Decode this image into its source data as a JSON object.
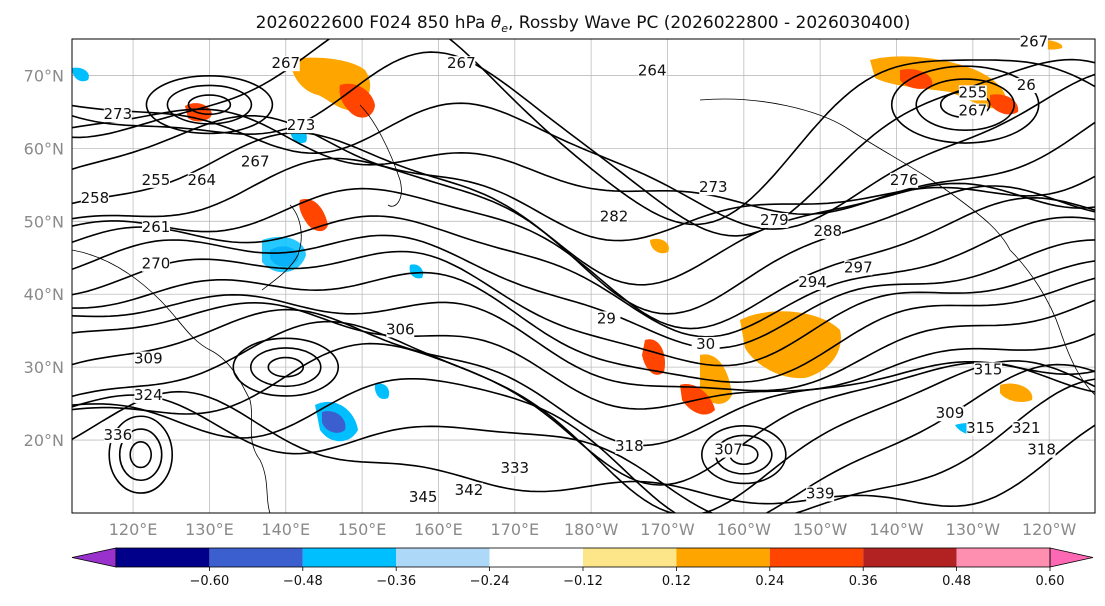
{
  "chart_data": {
    "type": "contour-map",
    "title": "2026022600 F024 850 hPa θe, Rossby Wave PC (2026022800 - 2026030400)",
    "title_parts": {
      "prefix": "2026022600 F024 850 hPa ",
      "symbol": "θ",
      "subscript": "e",
      "suffix": ", Rossby Wave PC (2026022800 - 2026030400)"
    },
    "lat_ticks": [
      "20°N",
      "30°N",
      "40°N",
      "50°N",
      "60°N",
      "70°N"
    ],
    "lat_values": [
      20,
      30,
      40,
      50,
      60,
      70
    ],
    "lon_ticks": [
      "120°E",
      "130°E",
      "140°E",
      "150°E",
      "160°E",
      "170°E",
      "180°W",
      "170°W",
      "160°W",
      "150°W",
      "140°W",
      "130°W",
      "120°W"
    ],
    "lon_values": [
      120,
      130,
      140,
      150,
      160,
      170,
      180,
      190,
      200,
      210,
      220,
      230,
      240
    ],
    "extent": {
      "lon_min": 112,
      "lon_max": 246,
      "lat_min": 10,
      "lat_max": 75
    },
    "colorbar": {
      "ticks": [
        "−0.60",
        "−0.48",
        "−0.36",
        "−0.24",
        "−0.12",
        "0.12",
        "0.24",
        "0.36",
        "0.48",
        "0.60"
      ],
      "tick_values": [
        -0.6,
        -0.48,
        -0.36,
        -0.24,
        -0.12,
        0.12,
        0.24,
        0.36,
        0.48,
        0.6
      ],
      "colors": [
        "#9932cc",
        "#00008b",
        "#3b5fce",
        "#00bfff",
        "#add8f7",
        "#ffffff",
        "#fde68a",
        "#ffa500",
        "#ff4500",
        "#b22222",
        "#ff8fb0",
        "#ff69b4"
      ],
      "extend": "both"
    },
    "contour_labels": [
      {
        "text": "267",
        "lon": 140,
        "lat": 71.0
      },
      {
        "text": "267",
        "lon": 163,
        "lat": 71.0
      },
      {
        "text": "264",
        "lon": 188,
        "lat": 70.0
      },
      {
        "text": "267",
        "lon": 238,
        "lat": 74.0
      },
      {
        "text": "26",
        "lon": 237,
        "lat": 68.0
      },
      {
        "text": "255",
        "lon": 230,
        "lat": 67.0
      },
      {
        "text": "267",
        "lon": 230,
        "lat": 64.5
      },
      {
        "text": "273",
        "lon": 118,
        "lat": 64.0
      },
      {
        "text": "273",
        "lon": 142,
        "lat": 62.5
      },
      {
        "text": "255",
        "lon": 123,
        "lat": 55.0
      },
      {
        "text": "264",
        "lon": 129,
        "lat": 55.0
      },
      {
        "text": "267",
        "lon": 136,
        "lat": 57.5
      },
      {
        "text": "258",
        "lon": 115,
        "lat": 52.5
      },
      {
        "text": "261",
        "lon": 123,
        "lat": 48.5
      },
      {
        "text": "270",
        "lon": 123,
        "lat": 43.5
      },
      {
        "text": "273",
        "lon": 196,
        "lat": 54.0
      },
      {
        "text": "282",
        "lon": 183,
        "lat": 50.0
      },
      {
        "text": "279",
        "lon": 204,
        "lat": 49.5
      },
      {
        "text": "288",
        "lon": 211,
        "lat": 48.0
      },
      {
        "text": "276",
        "lon": 221,
        "lat": 55.0
      },
      {
        "text": "294",
        "lon": 209,
        "lat": 41.0
      },
      {
        "text": "297",
        "lon": 215,
        "lat": 43.0
      },
      {
        "text": "29",
        "lon": 182,
        "lat": 36.0
      },
      {
        "text": "306",
        "lon": 155,
        "lat": 34.5
      },
      {
        "text": "309",
        "lon": 122,
        "lat": 30.5
      },
      {
        "text": "324",
        "lon": 122,
        "lat": 25.5
      },
      {
        "text": "30",
        "lon": 195,
        "lat": 32.5
      },
      {
        "text": "309",
        "lon": 227,
        "lat": 23.0
      },
      {
        "text": "315",
        "lon": 232,
        "lat": 29.0
      },
      {
        "text": "315",
        "lon": 231,
        "lat": 21.0
      },
      {
        "text": "321",
        "lon": 237,
        "lat": 21.0
      },
      {
        "text": "318",
        "lon": 239,
        "lat": 18.0
      },
      {
        "text": "318",
        "lon": 185,
        "lat": 18.5
      },
      {
        "text": "333",
        "lon": 170,
        "lat": 15.5
      },
      {
        "text": "342",
        "lon": 164,
        "lat": 12.5
      },
      {
        "text": "345",
        "lon": 158,
        "lat": 11.5
      },
      {
        "text": "339",
        "lon": 210,
        "lat": 12.0
      },
      {
        "text": "336",
        "lon": 118,
        "lat": 20.0
      },
      {
        "text": "307",
        "lon": 198,
        "lat": 18.0
      }
    ],
    "contour_level_interval": 3
  }
}
